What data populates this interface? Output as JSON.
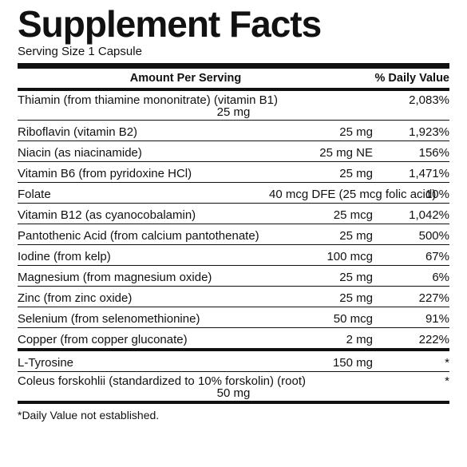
{
  "title": "Supplement Facts",
  "serving": "Serving Size 1 Capsule",
  "headers": {
    "amount": "Amount Per Serving",
    "dv": "% Daily Value"
  },
  "rows": [
    {
      "name": "Thiamin (from thiamine mononitrate) (vitamin B1)",
      "amount": "25 mg",
      "dv": "2,083%",
      "two": true
    },
    {
      "name": "Riboflavin (vitamin B2)",
      "amount": "25 mg",
      "dv": "1,923%"
    },
    {
      "name": "Niacin (as niacinamide)",
      "amount": "25 mg NE",
      "dv": "156%"
    },
    {
      "name": "Vitamin B6 (from pyridoxine HCl)",
      "amount": "25 mg",
      "dv": "1,471%"
    },
    {
      "name": "Folate",
      "amount": "40 mcg DFE (25 mcg folic acid)",
      "dv": "10%"
    },
    {
      "name": "Vitamin B12 (as cyanocobalamin)",
      "amount": "25 mcg",
      "dv": "1,042%"
    },
    {
      "name": "Pantothenic Acid (from calcium pantothenate)",
      "amount": "25 mg",
      "dv": "500%"
    },
    {
      "name": "Iodine (from kelp)",
      "amount": "100 mcg",
      "dv": "67%"
    },
    {
      "name": "Magnesium (from magnesium oxide)",
      "amount": "25 mg",
      "dv": "6%"
    },
    {
      "name": "Zinc (from zinc oxide)",
      "amount": "25 mg",
      "dv": "227%"
    },
    {
      "name": "Selenium (from selenomethionine)",
      "amount": "50 mcg",
      "dv": "91%"
    },
    {
      "name": "Copper (from copper gluconate)",
      "amount": "2 mg",
      "dv": "222%"
    }
  ],
  "section2": [
    {
      "name": "L-Tyrosine",
      "amount": "150 mg",
      "dv": "*"
    },
    {
      "name": "Coleus forskohlii (standardized to 10% forskolin) (root)",
      "amount": "50 mg",
      "dv": "*",
      "two": true
    }
  ],
  "footnote": "*Daily Value not established."
}
